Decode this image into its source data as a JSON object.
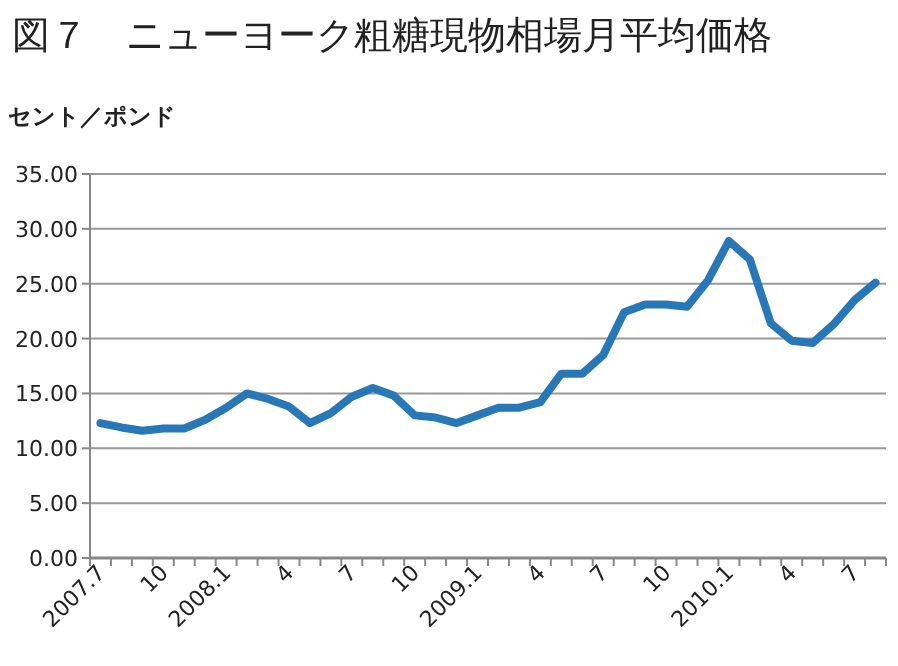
{
  "chart_data": {
    "type": "line",
    "title": "図７　ニューヨーク粗糖現物相場月平均価格",
    "ylabel": "セント／ポンド",
    "categories": [
      "2007.7",
      null,
      null,
      "10",
      null,
      null,
      "2008.1",
      null,
      null,
      "4",
      null,
      null,
      "7",
      null,
      null,
      "10",
      null,
      null,
      "2009.1",
      null,
      null,
      "4",
      null,
      null,
      "7",
      null,
      null,
      "10",
      null,
      null,
      "2010.1",
      null,
      null,
      "4",
      null,
      null,
      "7",
      null
    ],
    "series": [
      {
        "color": "#2878b8",
        "values": [
          12.3,
          11.9,
          11.6,
          11.8,
          11.8,
          12.6,
          13.7,
          15.0,
          14.5,
          13.8,
          12.3,
          13.2,
          14.7,
          15.5,
          14.8,
          13.0,
          12.8,
          12.3,
          13.0,
          13.7,
          13.7,
          14.2,
          16.8,
          16.8,
          18.5,
          22.4,
          23.1,
          23.1,
          22.9,
          25.3,
          28.9,
          27.2,
          21.4,
          19.8,
          19.6,
          21.3,
          23.5,
          25.1
        ]
      }
    ],
    "ylim": [
      0,
      35
    ],
    "yticks": [
      {
        "value": 0,
        "label": "0.00"
      },
      {
        "value": 5,
        "label": "5.00"
      },
      {
        "value": 10,
        "label": "10.00"
      },
      {
        "value": 15,
        "label": "15.00"
      },
      {
        "value": 20,
        "label": "20.00"
      },
      {
        "value": 25,
        "label": "25.00"
      },
      {
        "value": 30,
        "label": "30.00"
      },
      {
        "value": 35,
        "label": "35.00"
      }
    ],
    "grid": "y",
    "marker": "none",
    "line_style": "solid"
  }
}
